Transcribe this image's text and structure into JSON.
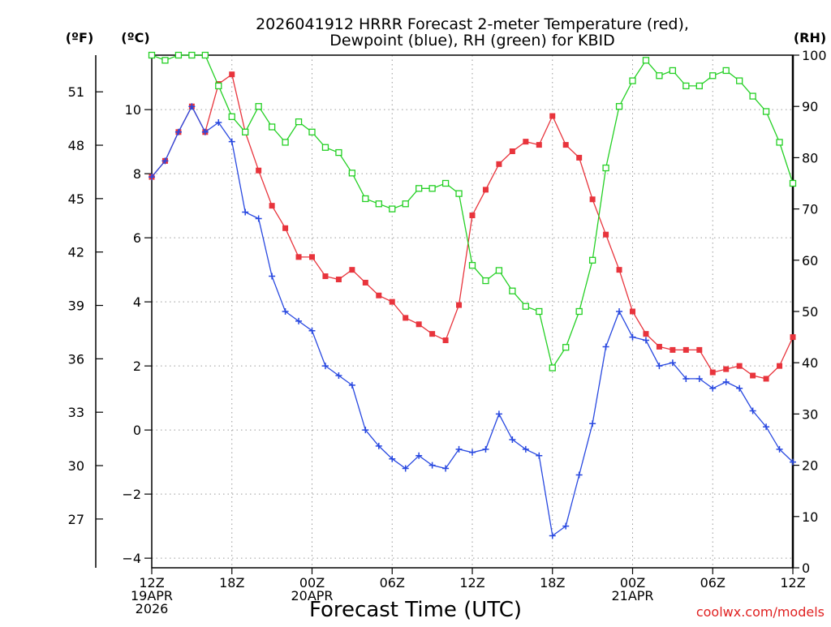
{
  "chart_data": {
    "type": "line",
    "title_line1": "2026041912 HRRR Forecast 2-meter Temperature (red),",
    "title_line2": "Dewpoint (blue), RH (green) for KBID",
    "xlabel": "Forecast Time (UTC)",
    "credit": "coolwx.com/models",
    "unit_left_f": "(ºF)",
    "unit_left_c": "(ºC)",
    "unit_right": "(RH)",
    "x_forecast_hours": [
      0,
      1,
      2,
      3,
      4,
      5,
      6,
      7,
      8,
      9,
      10,
      11,
      12,
      13,
      14,
      15,
      16,
      17,
      18,
      19,
      20,
      21,
      22,
      23,
      24,
      25,
      26,
      27,
      28,
      29,
      30,
      31,
      32,
      33,
      34,
      35,
      36,
      37,
      38,
      39,
      40,
      41,
      42,
      43,
      44,
      45,
      46,
      47,
      48
    ],
    "xlim": [
      0,
      48
    ],
    "x_ticks": [
      {
        "hour": 0,
        "lines": [
          "12Z",
          "19APR",
          "2026"
        ]
      },
      {
        "hour": 6,
        "lines": [
          "18Z"
        ]
      },
      {
        "hour": 12,
        "lines": [
          "00Z",
          "20APR"
        ]
      },
      {
        "hour": 18,
        "lines": [
          "06Z"
        ]
      },
      {
        "hour": 24,
        "lines": [
          "12Z"
        ]
      },
      {
        "hour": 30,
        "lines": [
          "18Z"
        ]
      },
      {
        "hour": 36,
        "lines": [
          "00Z",
          "21APR"
        ]
      },
      {
        "hour": 42,
        "lines": [
          "06Z"
        ]
      },
      {
        "hour": 48,
        "lines": [
          "12Z"
        ]
      }
    ],
    "y_c_lim": [
      -4.3,
      11.7
    ],
    "y_c_ticks": [
      -4,
      -2,
      0,
      2,
      4,
      6,
      8,
      10
    ],
    "y_f_ticks": [
      27,
      30,
      33,
      36,
      39,
      42,
      45,
      48,
      51
    ],
    "y_rh_lim": [
      0,
      100
    ],
    "y_rh_ticks": [
      0,
      10,
      20,
      30,
      40,
      50,
      60,
      70,
      80,
      90,
      100
    ],
    "grid": true,
    "series": [
      {
        "name": "Temperature",
        "axis": "celsius",
        "color": "#e8343c",
        "marker": "filled-square",
        "values": [
          7.9,
          8.4,
          9.3,
          10.1,
          9.3,
          10.8,
          11.1,
          9.3,
          8.1,
          7.0,
          6.3,
          5.4,
          5.4,
          4.8,
          4.7,
          5.0,
          4.6,
          4.2,
          4.0,
          3.5,
          3.3,
          3.0,
          2.8,
          3.9,
          6.7,
          7.5,
          8.3,
          8.7,
          9.0,
          8.9,
          9.8,
          8.9,
          8.5,
          7.2,
          6.1,
          5.0,
          3.7,
          3.0,
          2.6,
          2.5,
          2.5,
          2.5,
          1.8,
          1.9,
          2.0,
          1.7,
          1.6,
          2.0,
          2.9
        ]
      },
      {
        "name": "Dewpoint",
        "axis": "celsius",
        "color": "#2848e0",
        "marker": "plus",
        "values": [
          7.9,
          8.4,
          9.3,
          10.1,
          9.3,
          9.6,
          9.0,
          6.8,
          6.6,
          4.8,
          3.7,
          3.4,
          3.1,
          2.0,
          1.7,
          1.4,
          0.0,
          -0.5,
          -0.9,
          -1.2,
          -0.8,
          -1.1,
          -1.2,
          -0.6,
          -0.7,
          -0.6,
          0.5,
          -0.3,
          -0.6,
          -0.8,
          -3.3,
          -3.0,
          -1.4,
          0.2,
          2.6,
          3.7,
          2.9,
          2.8,
          2.0,
          2.1,
          1.6,
          1.6,
          1.3,
          1.5,
          1.3,
          0.6,
          0.1,
          -0.6,
          -1.0
        ]
      },
      {
        "name": "RH",
        "axis": "rh",
        "color": "#24d024",
        "marker": "open-square",
        "values": [
          100,
          99,
          100,
          100,
          100,
          94,
          88,
          85,
          90,
          86,
          83,
          87,
          85,
          82,
          81,
          77,
          72,
          71,
          70,
          71,
          74,
          74,
          75,
          73,
          59,
          56,
          58,
          54,
          51,
          50,
          39,
          43,
          50,
          60,
          78,
          90,
          95,
          99,
          96,
          97,
          94,
          94,
          96,
          97,
          95,
          92,
          89,
          83,
          75
        ]
      }
    ]
  }
}
